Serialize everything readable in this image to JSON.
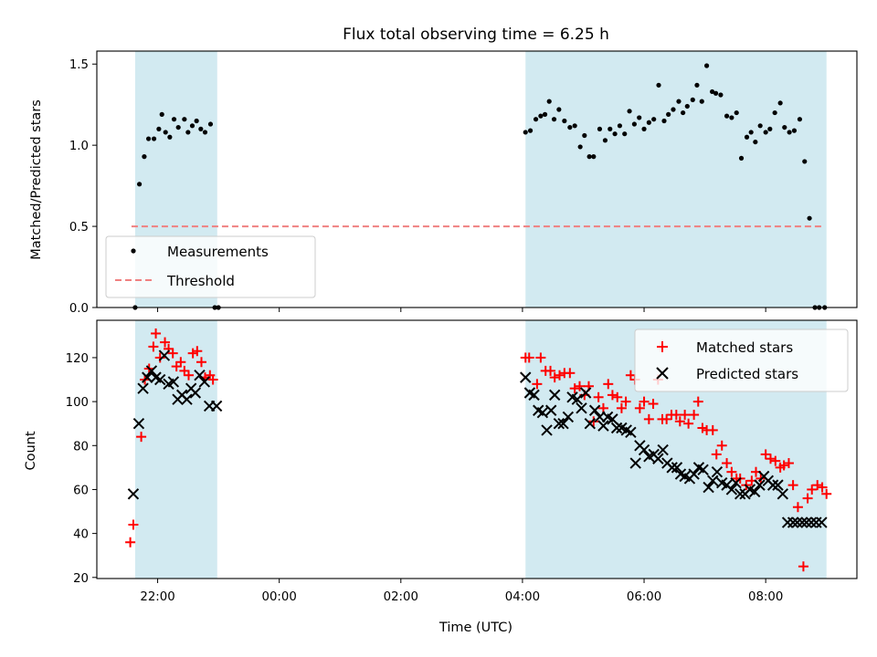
{
  "chart_data": [
    {
      "type": "scatter",
      "title": "Flux total observing time = 6.25 h",
      "xlabel": "",
      "ylabel": "Matched/Predicted stars",
      "ylim": [
        0,
        1.58
      ],
      "yticks": [
        0.0,
        0.5,
        1.0,
        1.5
      ],
      "ytick_labels": [
        "0.0",
        "0.5",
        "1.0",
        "1.5"
      ],
      "xlim": [
        21.0,
        33.5
      ],
      "xticks": [
        22,
        24,
        26,
        28,
        30,
        32
      ],
      "shaded_spans": [
        [
          21.63,
          22.98
        ],
        [
          28.05,
          33.0
        ]
      ],
      "legend": {
        "position": "lower-left",
        "entries": [
          "Measurements",
          "Threshold"
        ]
      },
      "series": [
        {
          "name": "Measurements",
          "color": "#000000",
          "marker": "dot",
          "x": [
            21.63,
            21.7,
            21.78,
            21.85,
            21.94,
            22.02,
            22.07,
            22.13,
            22.2,
            22.27,
            22.34,
            22.44,
            22.5,
            22.57,
            22.64,
            22.71,
            22.78,
            22.87,
            22.94,
            23.0,
            28.05,
            28.13,
            28.22,
            28.3,
            28.37,
            28.44,
            28.52,
            28.6,
            28.69,
            28.78,
            28.86,
            28.95,
            29.02,
            29.1,
            29.17,
            29.27,
            29.36,
            29.44,
            29.52,
            29.6,
            29.68,
            29.76,
            29.84,
            29.92,
            30.0,
            30.08,
            30.16,
            30.24,
            30.33,
            30.4,
            30.48,
            30.57,
            30.64,
            30.71,
            30.8,
            30.87,
            30.95,
            31.03,
            31.12,
            31.18,
            31.26,
            31.36,
            31.44,
            31.52,
            31.6,
            31.69,
            31.76,
            31.83,
            31.91,
            32.0,
            32.07,
            32.15,
            32.24,
            32.31,
            32.39,
            32.47,
            32.56,
            32.64,
            32.72,
            32.81,
            32.88,
            32.97
          ],
          "y": [
            0.0,
            0.76,
            0.93,
            1.04,
            1.04,
            1.1,
            1.19,
            1.08,
            1.05,
            1.16,
            1.11,
            1.16,
            1.08,
            1.12,
            1.15,
            1.1,
            1.08,
            1.13,
            0.0,
            0.0,
            1.08,
            1.09,
            1.16,
            1.18,
            1.19,
            1.27,
            1.16,
            1.22,
            1.15,
            1.11,
            1.12,
            0.99,
            1.06,
            0.93,
            0.93,
            1.1,
            1.03,
            1.1,
            1.07,
            1.12,
            1.07,
            1.21,
            1.13,
            1.17,
            1.1,
            1.14,
            1.16,
            1.37,
            1.15,
            1.19,
            1.22,
            1.27,
            1.2,
            1.24,
            1.28,
            1.37,
            1.27,
            1.49,
            1.33,
            1.32,
            1.31,
            1.18,
            1.17,
            1.2,
            0.92,
            1.05,
            1.08,
            1.02,
            1.12,
            1.08,
            1.1,
            1.2,
            1.26,
            1.11,
            1.08,
            1.09,
            1.16,
            0.9,
            0.55,
            0.0,
            0.0,
            0.0
          ]
        },
        {
          "name": "Threshold",
          "color": "#f08080",
          "style": "dashed",
          "x": [
            21.57,
            32.97
          ],
          "y": [
            0.5,
            0.5
          ]
        }
      ]
    },
    {
      "type": "scatter",
      "title": "",
      "xlabel": "Time (UTC)",
      "ylabel": "Count",
      "ylim": [
        19.5,
        137
      ],
      "yticks": [
        20,
        40,
        60,
        80,
        100,
        120
      ],
      "ytick_labels": [
        "20",
        "40",
        "60",
        "80",
        "100",
        "120"
      ],
      "xlim": [
        21.0,
        33.5
      ],
      "xticks": [
        22,
        24,
        26,
        28,
        30,
        32
      ],
      "xtick_labels": [
        "22:00",
        "00:00",
        "02:00",
        "04:00",
        "06:00",
        "08:00"
      ],
      "shaded_spans": [
        [
          21.63,
          22.98
        ],
        [
          28.05,
          33.0
        ]
      ],
      "legend": {
        "position": "top-right",
        "entries": [
          "Matched stars",
          "Predicted stars"
        ]
      },
      "series": [
        {
          "name": "Matched stars",
          "color": "#ff0000",
          "marker": "plus",
          "x": [
            21.55,
            21.6,
            21.73,
            21.79,
            21.86,
            21.93,
            21.97,
            22.04,
            22.12,
            22.18,
            22.25,
            22.31,
            22.38,
            22.44,
            22.51,
            22.58,
            22.65,
            22.72,
            22.78,
            22.86,
            22.91,
            28.05,
            28.11,
            28.24,
            28.3,
            28.38,
            28.46,
            28.53,
            28.61,
            28.69,
            28.78,
            28.86,
            28.94,
            29.02,
            29.09,
            29.17,
            29.25,
            29.33,
            29.41,
            29.48,
            29.56,
            29.63,
            29.7,
            29.78,
            29.85,
            29.93,
            30.0,
            30.08,
            30.15,
            30.23,
            30.3,
            30.37,
            30.45,
            30.53,
            30.59,
            30.67,
            30.73,
            30.82,
            30.89,
            30.96,
            31.03,
            31.13,
            31.19,
            31.28,
            31.36,
            31.44,
            31.52,
            31.58,
            31.68,
            31.77,
            31.84,
            31.92,
            32.0,
            32.08,
            32.16,
            32.24,
            32.3,
            32.38,
            32.45,
            32.53,
            32.62,
            32.69,
            32.76,
            32.85,
            32.93,
            33.0
          ],
          "y": [
            36,
            44,
            84,
            110,
            115,
            125,
            131,
            120,
            127,
            124,
            122,
            116,
            118,
            114,
            112,
            122,
            123,
            118,
            111,
            112,
            110,
            120,
            120,
            108,
            120,
            114,
            114,
            111,
            112,
            113,
            113,
            106,
            107,
            103,
            107,
            91,
            102,
            97,
            108,
            103,
            102,
            97,
            100,
            112,
            110,
            97,
            100,
            92,
            99,
            110,
            92,
            92,
            94,
            94,
            91,
            94,
            90,
            94,
            100,
            88,
            87,
            87,
            76,
            80,
            72,
            68,
            65,
            65,
            62,
            64,
            68,
            65,
            76,
            74,
            73,
            70,
            71,
            72,
            62,
            52,
            25,
            56,
            60,
            62,
            61,
            58
          ],
          "note": ""
        },
        {
          "name": "Predicted stars",
          "color": "#000000",
          "marker": "x",
          "x": [
            21.6,
            21.69,
            21.76,
            21.83,
            21.9,
            21.97,
            22.04,
            22.11,
            22.18,
            22.26,
            22.33,
            22.4,
            22.48,
            22.55,
            22.62,
            22.69,
            22.77,
            22.85,
            22.97,
            28.05,
            28.12,
            28.19,
            28.26,
            28.33,
            28.4,
            28.47,
            28.53,
            28.6,
            28.67,
            28.75,
            28.82,
            28.9,
            28.97,
            29.04,
            29.11,
            29.19,
            29.27,
            29.33,
            29.4,
            29.48,
            29.55,
            29.63,
            29.71,
            29.78,
            29.86,
            29.93,
            30.0,
            30.08,
            30.16,
            30.23,
            30.31,
            30.38,
            30.46,
            30.54,
            30.6,
            30.67,
            30.75,
            30.82,
            30.9,
            30.97,
            31.06,
            31.13,
            31.2,
            31.28,
            31.36,
            31.44,
            31.51,
            31.58,
            31.66,
            31.74,
            31.82,
            31.9,
            31.97,
            32.04,
            32.12,
            32.2,
            32.28,
            32.36,
            32.45,
            32.52,
            32.6,
            32.67,
            32.75,
            32.83,
            32.92
          ],
          "y": [
            58,
            90,
            106,
            111,
            114,
            111,
            110,
            121,
            108,
            109,
            101,
            103,
            101,
            106,
            104,
            112,
            109,
            98,
            98,
            111,
            104,
            103,
            96,
            95,
            87,
            96,
            103,
            90,
            90,
            93,
            102,
            101,
            97,
            104,
            90,
            96,
            93,
            89,
            93,
            92,
            88,
            88,
            87,
            86,
            72,
            80,
            78,
            75,
            76,
            74,
            78,
            72,
            70,
            70,
            67,
            66,
            65,
            67,
            70,
            69,
            61,
            64,
            68,
            63,
            62,
            60,
            63,
            58,
            58,
            60,
            59,
            62,
            66,
            64,
            62,
            62,
            58,
            45,
            45,
            45,
            45,
            45,
            45,
            45,
            45
          ]
        }
      ]
    }
  ]
}
